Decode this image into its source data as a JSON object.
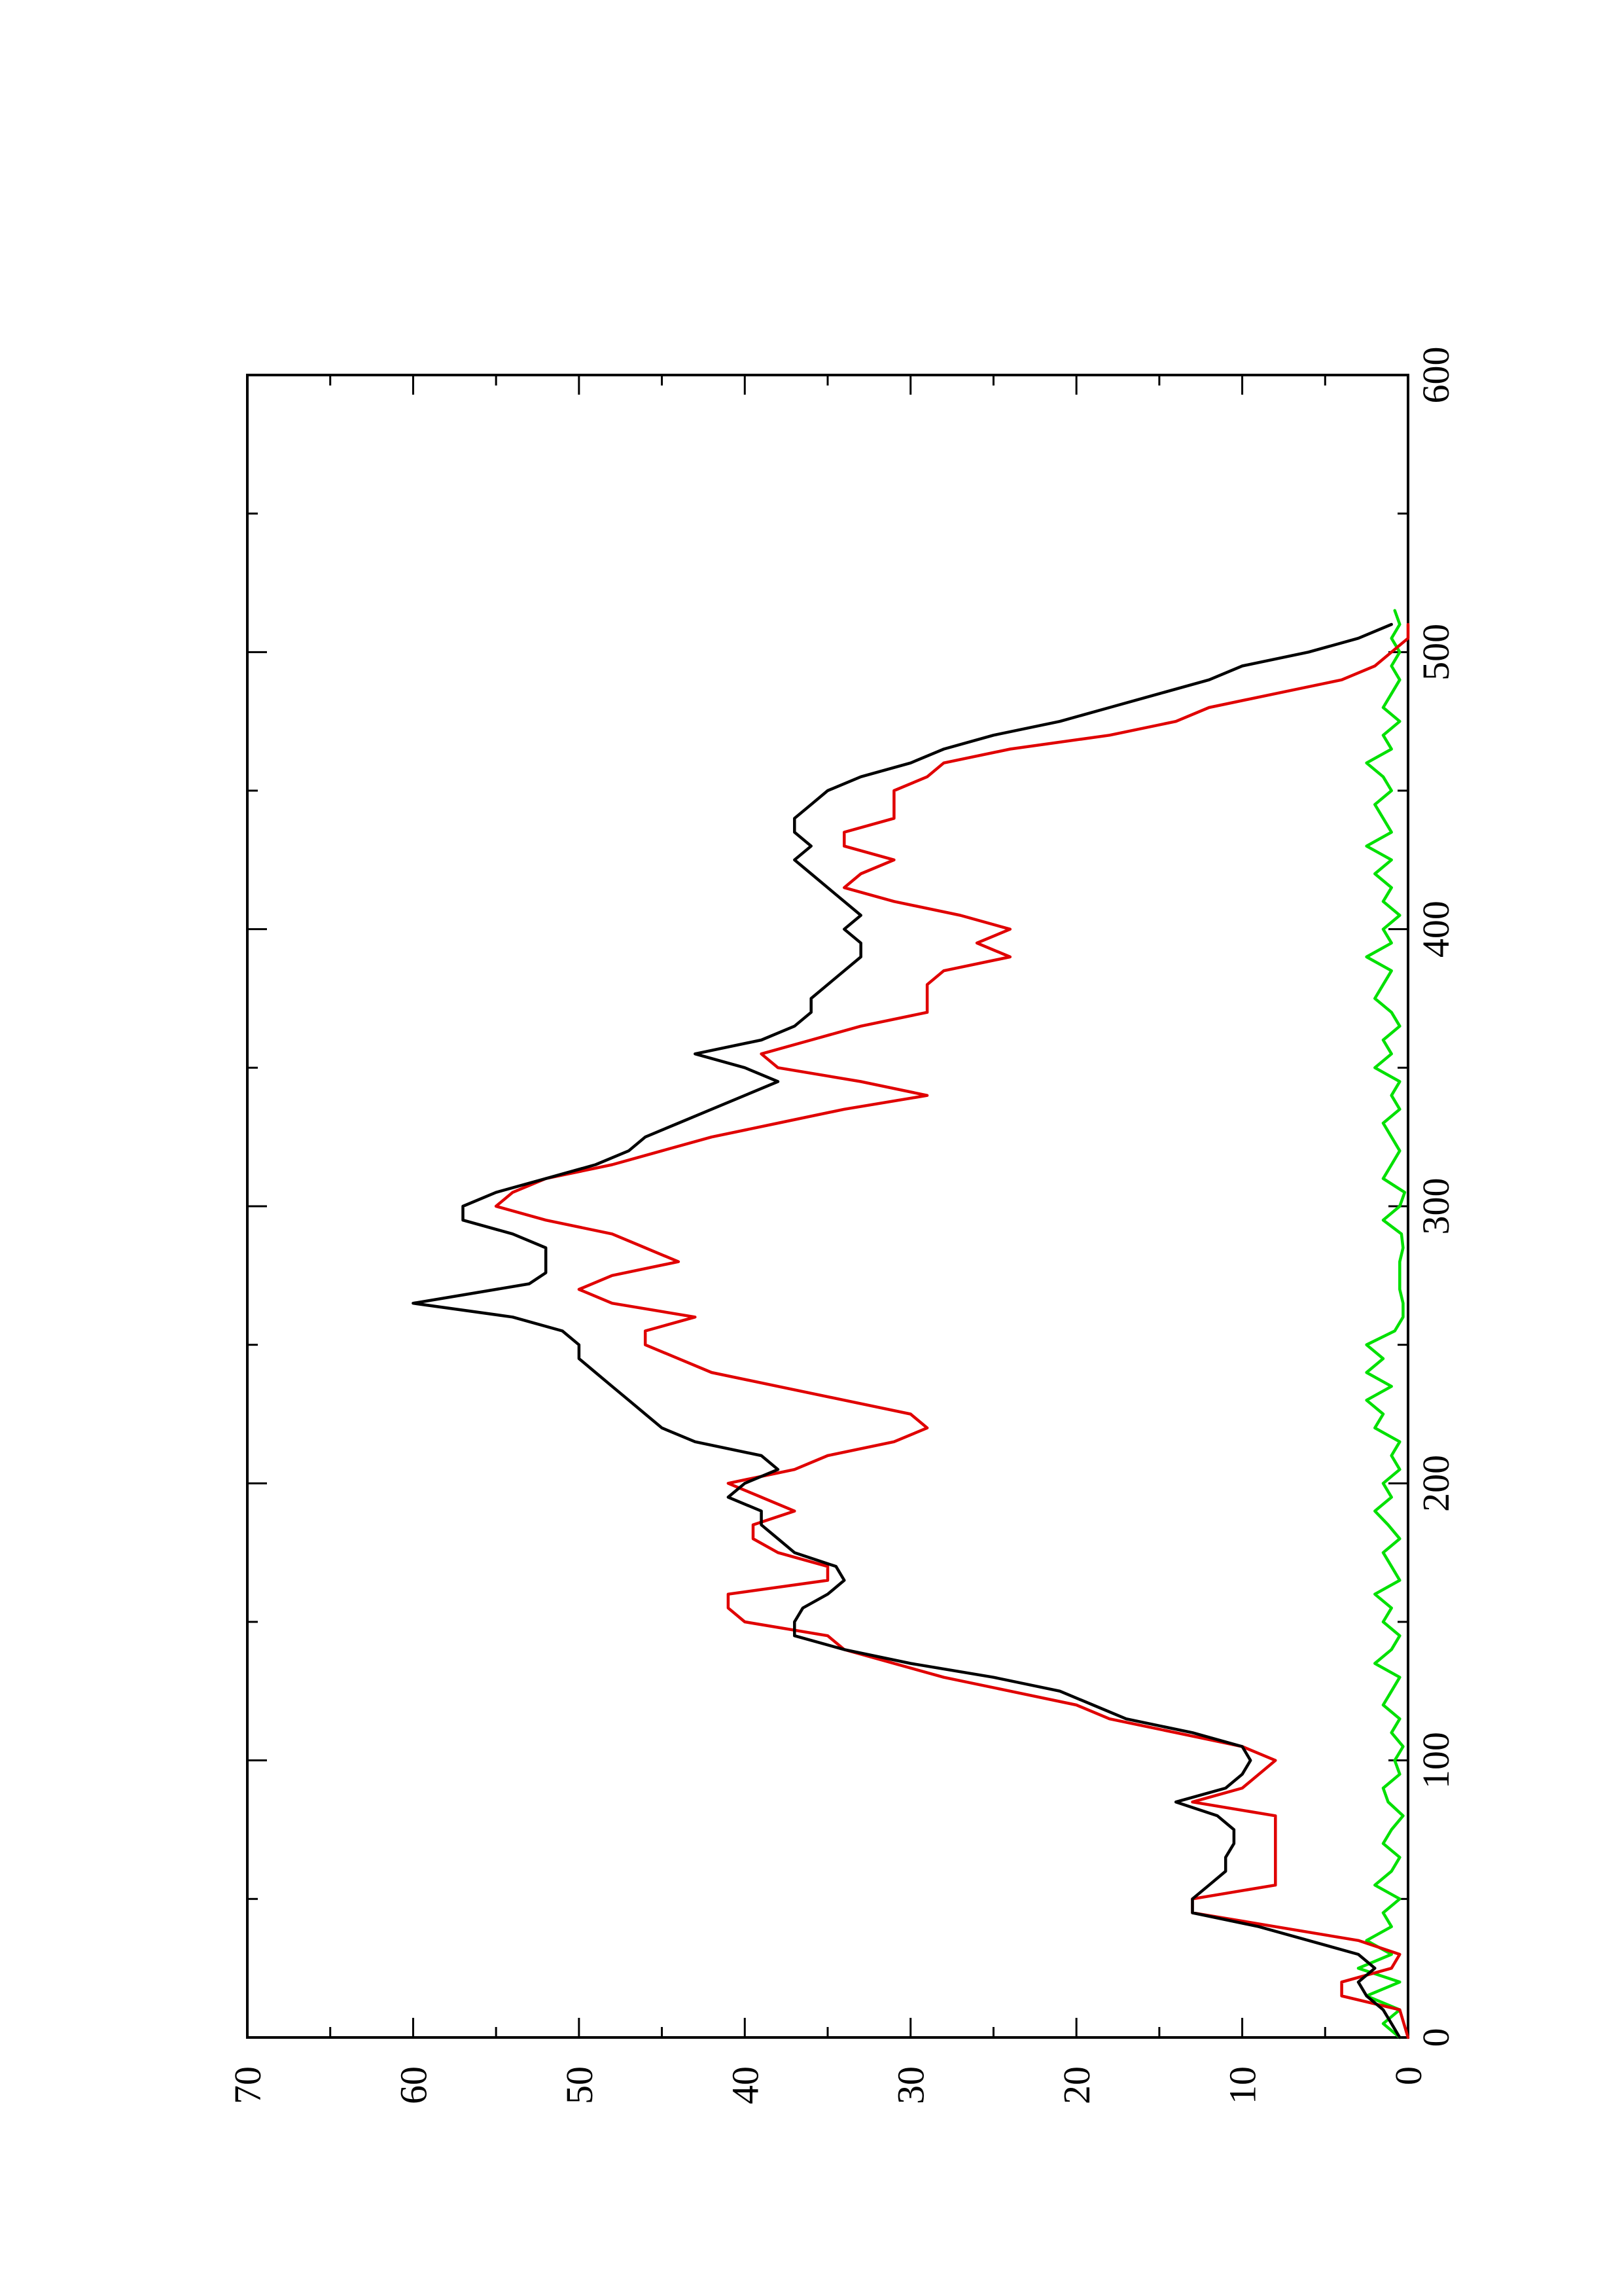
{
  "chart_data": {
    "type": "line",
    "title": "",
    "xlabel": "",
    "ylabel": "",
    "orientation": "page rotated 90 degrees counter-clockwise (x axis runs bottom-to-top, y axis runs right-to-left)",
    "xlim": [
      0,
      600
    ],
    "ylim": [
      0,
      70
    ],
    "x_ticks": [
      "0",
      "100",
      "200",
      "300",
      "400",
      "500",
      "600"
    ],
    "y_ticks": [
      "0",
      "10",
      "20",
      "30",
      "40",
      "50",
      "60",
      "70"
    ],
    "x_minor_step": 50,
    "y_minor_step": 5,
    "grid": false,
    "legend": "none",
    "series": [
      {
        "color": "#000000",
        "x": [
          0,
          5,
          10,
          15,
          20,
          25,
          30,
          35,
          40,
          45,
          50,
          55,
          60,
          65,
          70,
          75,
          80,
          85,
          90,
          95,
          100,
          105,
          110,
          115,
          120,
          125,
          130,
          135,
          140,
          145,
          150,
          155,
          160,
          165,
          170,
          175,
          180,
          185,
          190,
          195,
          200,
          205,
          210,
          215,
          220,
          225,
          230,
          235,
          240,
          245,
          250,
          255,
          260,
          265,
          268,
          272,
          276,
          280,
          285,
          290,
          295,
          300,
          305,
          310,
          315,
          320,
          325,
          330,
          335,
          340,
          345,
          350,
          355,
          360,
          365,
          370,
          375,
          380,
          385,
          390,
          395,
          400,
          405,
          410,
          415,
          420,
          425,
          430,
          435,
          440,
          445,
          450,
          455,
          460,
          465,
          470,
          475,
          480,
          485,
          490,
          495,
          500,
          505,
          510
        ],
        "values": [
          0.5,
          1,
          1.5,
          2.5,
          3,
          2,
          3,
          6,
          9,
          13,
          13,
          12,
          11,
          11,
          10.5,
          10.5,
          11.5,
          14,
          11,
          10,
          9.5,
          10,
          13,
          17,
          19,
          21,
          25,
          30,
          34,
          37,
          37,
          36.5,
          35,
          34,
          34.5,
          37,
          38,
          39,
          39,
          41,
          40,
          38,
          39,
          43,
          45,
          46,
          47,
          48,
          49,
          50,
          50,
          51,
          54,
          60,
          57,
          53,
          52,
          52,
          52,
          54,
          57,
          57,
          55,
          52,
          49,
          47,
          46,
          44,
          42,
          40,
          38,
          40,
          43,
          39,
          37,
          36,
          36,
          35,
          34,
          33,
          33,
          34,
          33,
          34,
          35,
          36,
          37,
          36,
          37,
          37,
          36,
          35,
          33,
          30,
          28,
          25,
          21,
          18,
          15,
          12,
          10,
          6,
          3,
          1
        ]
      },
      {
        "color": "#e00000",
        "x": [
          0,
          10,
          15,
          20,
          25,
          30,
          35,
          40,
          45,
          50,
          55,
          60,
          70,
          80,
          85,
          90,
          100,
          105,
          110,
          115,
          120,
          125,
          130,
          140,
          145,
          150,
          155,
          160,
          165,
          170,
          175,
          180,
          185,
          190,
          195,
          200,
          205,
          210,
          215,
          220,
          225,
          230,
          235,
          240,
          245,
          250,
          255,
          260,
          265,
          270,
          275,
          280,
          285,
          290,
          295,
          300,
          305,
          310,
          315,
          320,
          325,
          330,
          335,
          340,
          345,
          350,
          355,
          360,
          365,
          370,
          375,
          380,
          385,
          390,
          395,
          400,
          405,
          410,
          415,
          420,
          425,
          430,
          435,
          440,
          445,
          450,
          455,
          460,
          465,
          470,
          475,
          480,
          485,
          490,
          495,
          500,
          505,
          510
        ],
        "values": [
          0,
          0.5,
          4,
          4,
          1,
          0.5,
          3,
          8,
          13,
          13,
          8,
          8,
          8,
          8,
          13,
          10,
          8,
          10,
          14,
          18,
          20,
          24,
          28,
          34,
          35,
          40,
          41,
          41,
          35,
          35,
          38,
          39.5,
          39.5,
          37,
          39,
          41,
          37,
          35,
          31,
          29,
          30,
          34,
          38,
          42,
          44,
          46,
          46,
          43,
          48,
          50,
          48,
          44,
          46,
          48,
          52,
          55,
          54,
          52,
          48,
          45,
          42,
          38,
          34,
          29,
          33,
          38,
          39,
          36,
          33,
          29,
          29,
          29,
          28,
          24,
          26,
          24,
          27,
          31,
          34,
          33,
          31,
          34,
          34,
          31,
          31,
          31,
          29,
          28,
          24,
          18,
          14,
          12,
          8,
          4,
          2,
          1,
          0,
          0
        ]
      },
      {
        "color": "#00e000",
        "x": [
          0,
          5,
          10,
          15,
          20,
          25,
          30,
          35,
          40,
          45,
          50,
          55,
          60,
          65,
          70,
          75,
          80,
          85,
          90,
          95,
          100,
          105,
          110,
          115,
          120,
          125,
          130,
          135,
          140,
          145,
          150,
          155,
          160,
          165,
          170,
          175,
          180,
          185,
          190,
          195,
          200,
          205,
          210,
          215,
          220,
          225,
          230,
          235,
          240,
          245,
          250,
          255,
          260,
          265,
          270,
          275,
          280,
          285,
          290,
          295,
          300,
          305,
          310,
          315,
          320,
          325,
          330,
          335,
          340,
          345,
          350,
          355,
          360,
          365,
          370,
          375,
          380,
          385,
          390,
          395,
          400,
          405,
          410,
          415,
          420,
          425,
          430,
          435,
          440,
          445,
          450,
          455,
          460,
          465,
          470,
          475,
          480,
          485,
          490,
          495,
          500,
          505,
          510,
          515
        ],
        "values": [
          0.5,
          1.5,
          0.5,
          2.5,
          0.5,
          3,
          1,
          2.5,
          1,
          1.5,
          0.5,
          2,
          1,
          0.5,
          1.5,
          1,
          0.3,
          1.2,
          1.5,
          0.5,
          0.8,
          0.3,
          1,
          0.5,
          1.5,
          1,
          0.5,
          2,
          1,
          0.5,
          1.5,
          1,
          2,
          0.5,
          1,
          1.5,
          0.5,
          1.2,
          2,
          1,
          1.5,
          0.5,
          1,
          0.5,
          2,
          1.5,
          2.5,
          1,
          2.5,
          1.5,
          2.5,
          0.8,
          0.3,
          0.3,
          0.5,
          0.5,
          0.5,
          0.3,
          0.4,
          1.5,
          0.5,
          0.2,
          1.5,
          1,
          0.5,
          1,
          1.5,
          0.5,
          1,
          0.5,
          2,
          1,
          1.5,
          0.5,
          1,
          2,
          1.5,
          1,
          2.5,
          1,
          1.5,
          0.5,
          1.5,
          1,
          2,
          1,
          2.5,
          1,
          1.5,
          2,
          1,
          1.5,
          2.5,
          1,
          1.5,
          0.5,
          1.5,
          1,
          0.5,
          1,
          0.5,
          1,
          0.5,
          0.8
        ]
      }
    ]
  }
}
